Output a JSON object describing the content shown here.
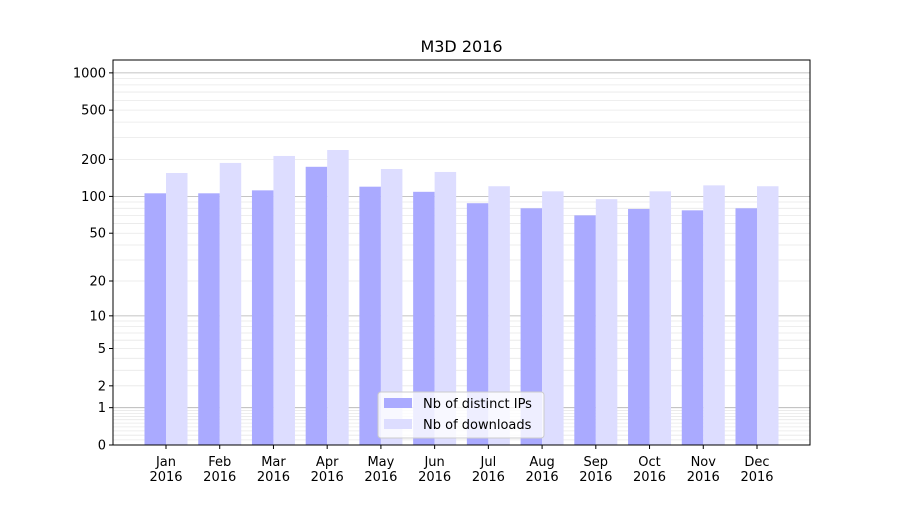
{
  "chart_data": {
    "type": "bar",
    "title": "M3D 2016",
    "xlabel": "",
    "ylabel": "",
    "yscale": "log(1+y)",
    "ylim": [
      0,
      1270
    ],
    "yticks": [
      0,
      1,
      2,
      5,
      10,
      20,
      50,
      100,
      200,
      500,
      1000
    ],
    "grid": true,
    "legend_position": "bottom-center",
    "categories": [
      "Jan\n2016",
      "Feb\n2016",
      "Mar\n2016",
      "Apr\n2016",
      "May\n2016",
      "Jun\n2016",
      "Jul\n2016",
      "Aug\n2016",
      "Sep\n2016",
      "Oct\n2016",
      "Nov\n2016",
      "Dec\n2016"
    ],
    "series": [
      {
        "name": "Nb of distinct IPs",
        "color": "#aaaaff",
        "values": [
          106,
          106,
          112,
          174,
          120,
          109,
          88,
          80,
          70,
          79,
          77,
          80
        ]
      },
      {
        "name": "Nb of downloads",
        "color": "#ddddff",
        "values": [
          155,
          187,
          213,
          238,
          167,
          158,
          121,
          110,
          95,
          110,
          123,
          121
        ]
      }
    ]
  }
}
